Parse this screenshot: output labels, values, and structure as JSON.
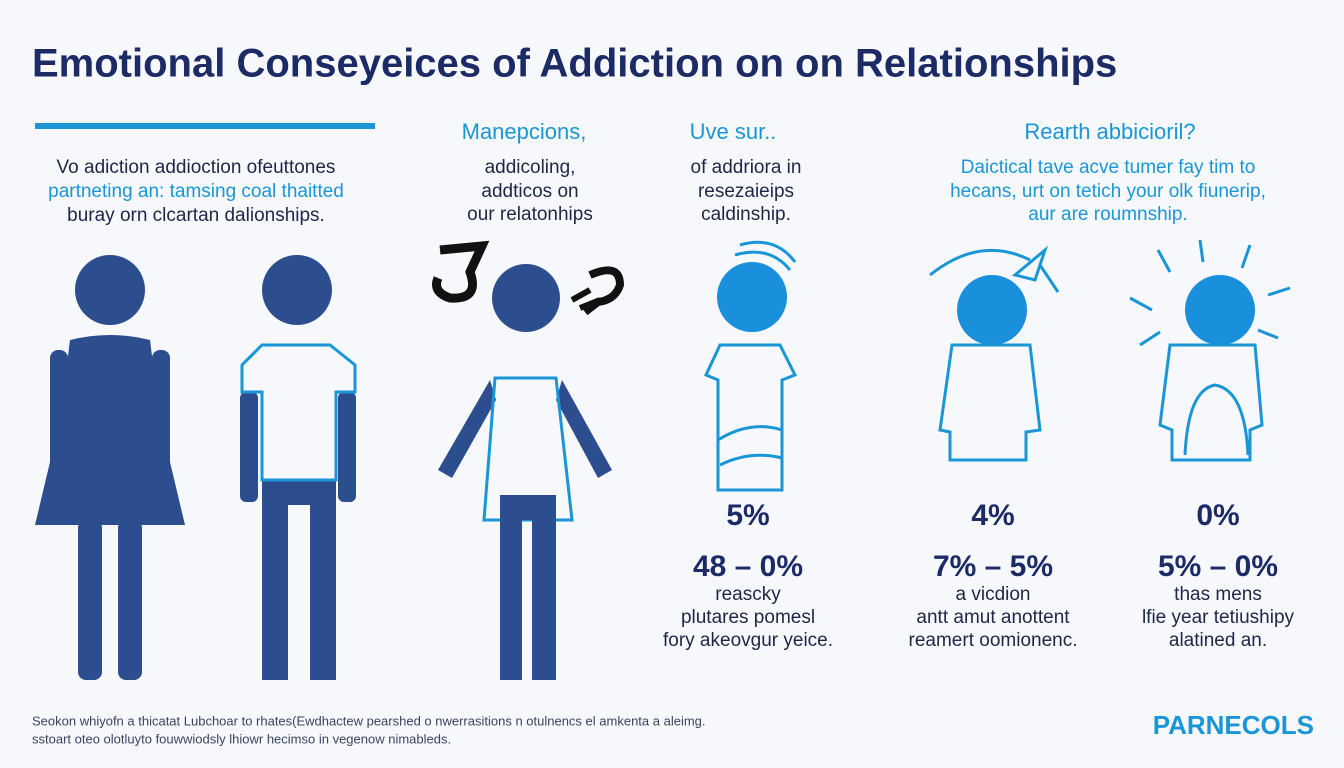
{
  "title": "Emotional Conseyeices of Addiction on on Relationships",
  "intro": {
    "lines": [
      "Vo adiction addioction ofeuttones",
      "partneting an: tamsing coal thaitted",
      "buray orn clcartan dalionships."
    ]
  },
  "columns": [
    {
      "heading": "Manepcions,",
      "lines": [
        "addicoling,",
        "addticos on",
        "our relatonhips"
      ]
    },
    {
      "heading": "Uve sur..",
      "lines": [
        "of addriora in",
        "resezaieips",
        "caldinship."
      ]
    },
    {
      "heading": "Rearth abbicioril?",
      "lines": [
        "Daictical tave acve tumer fay tim to",
        "hecans, urt on tetich your olk fiunerip,",
        "aur are roumnship."
      ]
    }
  ],
  "stats": [
    {
      "value": "5%",
      "range": "48 – 0%",
      "lines": [
        "reascky",
        "plutares pomesl",
        "fory akeovgur yeice."
      ]
    },
    {
      "value": "4%",
      "range": "7% – 5%",
      "lines": [
        "a vicdion",
        "antt amut anottent",
        "reamert oomionenc."
      ]
    },
    {
      "value": "0%",
      "range": "5% – 0%",
      "lines": [
        "thas mens",
        "lfie year tetiushipy",
        "alatined an."
      ]
    }
  ],
  "footer": {
    "lines": [
      "Seokon whiyofn a thicatat Lubchoar to rhates(Ewdhactew pearshed o nwerrasitions n otulnencs el amkenta a aleimg.",
      "sstoart oteo olotluyto fouwwiodsly lhiowr hecimso in vegenow nimableds."
    ],
    "brand": "PARNECOLS"
  }
}
